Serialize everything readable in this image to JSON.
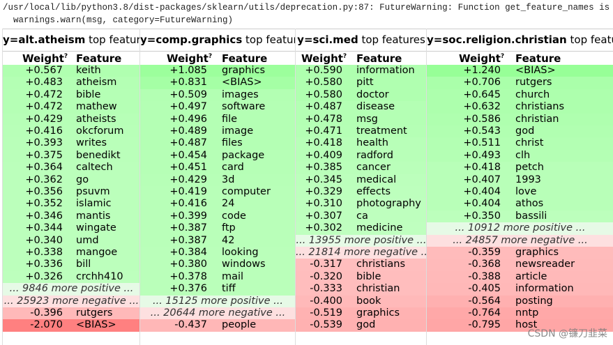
{
  "warning": [
    "/usr/local/lib/python3.8/dist-packages/sklearn/utils/deprecation.py:87: FutureWarning: Function get_feature_names is deprecat",
    "  warnings.warn(msg, category=FutureWarning)"
  ],
  "columns": [
    {
      "target": "y=alt.atheism",
      "caption": "top features",
      "weight_header": "Weight",
      "weight_hint": "?",
      "feature_header": "Feature",
      "positive": {
        "weights": [
          0.567,
          0.483,
          0.472,
          0.472,
          0.429,
          0.416,
          0.393,
          0.375,
          0.364,
          0.362,
          0.356,
          0.352,
          0.346,
          0.344,
          0.34,
          0.338,
          0.336,
          0.326
        ],
        "labels": [
          "+0.567",
          "+0.483",
          "+0.472",
          "+0.472",
          "+0.429",
          "+0.416",
          "+0.393",
          "+0.375",
          "+0.364",
          "+0.362",
          "+0.356",
          "+0.352",
          "+0.346",
          "+0.344",
          "+0.340",
          "+0.338",
          "+0.336",
          "+0.326"
        ],
        "features": [
          "keith",
          "atheism",
          "bible",
          "mathew",
          "atheists",
          "okcforum",
          "writes",
          "benedikt",
          "caltech",
          "go",
          "psuvm",
          "islamic",
          "mantis",
          "wingate",
          "umd",
          "mangoe",
          "bill",
          "crchh410"
        ]
      },
      "more_positive": "... 9846 more positive ...",
      "more_negative": "... 25923 more negative ...",
      "negative": {
        "weights": [
          -0.396,
          -2.07
        ],
        "labels": [
          "-0.396",
          "-2.070"
        ],
        "features": [
          "rutgers",
          "<BIAS>"
        ]
      }
    },
    {
      "target": "y=comp.graphics",
      "caption": "top features",
      "weight_header": "Weight",
      "weight_hint": "?",
      "feature_header": "Feature",
      "positive": {
        "weights": [
          1.085,
          0.831,
          0.509,
          0.497,
          0.496,
          0.489,
          0.487,
          0.454,
          0.451,
          0.429,
          0.419,
          0.416,
          0.399,
          0.387,
          0.387,
          0.384,
          0.38,
          0.378,
          0.376
        ],
        "labels": [
          "+1.085",
          "+0.831",
          "+0.509",
          "+0.497",
          "+0.496",
          "+0.489",
          "+0.487",
          "+0.454",
          "+0.451",
          "+0.429",
          "+0.419",
          "+0.416",
          "+0.399",
          "+0.387",
          "+0.387",
          "+0.384",
          "+0.380",
          "+0.378",
          "+0.376"
        ],
        "features": [
          "graphics",
          "<BIAS>",
          "images",
          "software",
          "file",
          "image",
          "files",
          "package",
          "card",
          "3d",
          "computer",
          "24",
          "code",
          "ftp",
          "42",
          "looking",
          "windows",
          "mail",
          "tiff"
        ]
      },
      "more_positive": "... 15125 more positive ...",
      "more_negative": "... 20644 more negative ...",
      "negative": {
        "weights": [
          -0.437
        ],
        "labels": [
          "-0.437"
        ],
        "features": [
          "people"
        ]
      }
    },
    {
      "target": "y=sci.med",
      "caption": "top features",
      "weight_header": "Weight",
      "weight_hint": "?",
      "feature_header": "Feature",
      "positive": {
        "weights": [
          0.59,
          0.58,
          0.58,
          0.487,
          0.478,
          0.471,
          0.418,
          0.409,
          0.385,
          0.345,
          0.329,
          0.31,
          0.307,
          0.302
        ],
        "labels": [
          "+0.590",
          "+0.580",
          "+0.580",
          "+0.487",
          "+0.478",
          "+0.471",
          "+0.418",
          "+0.409",
          "+0.385",
          "+0.345",
          "+0.329",
          "+0.310",
          "+0.307",
          "+0.302"
        ],
        "features": [
          "information",
          "pitt",
          "doctor",
          "disease",
          "msg",
          "treatment",
          "health",
          "radford",
          "cancer",
          "medical",
          "effects",
          "photography",
          "ca",
          "medicine"
        ]
      },
      "more_positive": "... 13955 more positive ...",
      "more_negative": "... 21814 more negative ...",
      "negative": {
        "weights": [
          -0.317,
          -0.32,
          -0.333,
          -0.4,
          -0.519,
          -0.539
        ],
        "labels": [
          "-0.317",
          "-0.320",
          "-0.333",
          "-0.400",
          "-0.519",
          "-0.539"
        ],
        "features": [
          "christians",
          "bible",
          "christian",
          "book",
          "graphics",
          "god"
        ]
      }
    },
    {
      "target": "y=soc.religion.christian",
      "caption": "top features",
      "weight_header": "Weight",
      "weight_hint": "?",
      "feature_header": "Feature",
      "positive": {
        "weights": [
          1.24,
          0.706,
          0.645,
          0.632,
          0.586,
          0.543,
          0.511,
          0.493,
          0.418,
          0.407,
          0.404,
          0.404,
          0.35
        ],
        "labels": [
          "+1.240",
          "+0.706",
          "+0.645",
          "+0.632",
          "+0.586",
          "+0.543",
          "+0.511",
          "+0.493",
          "+0.418",
          "+0.407",
          "+0.404",
          "+0.404",
          "+0.350"
        ],
        "features": [
          "<BIAS>",
          "rutgers",
          "church",
          "christians",
          "christian",
          "god",
          "christ",
          "clh",
          "petch",
          "1993",
          "love",
          "athos",
          "bassili"
        ]
      },
      "more_positive": "... 10912 more positive ...",
      "more_negative": "... 24857 more negative ...",
      "negative": {
        "weights": [
          -0.359,
          -0.368,
          -0.388,
          -0.405,
          -0.564,
          -0.764,
          -0.795
        ],
        "labels": [
          "-0.359",
          "-0.368",
          "-0.388",
          "-0.405",
          "-0.564",
          "-0.764",
          "-0.795"
        ],
        "features": [
          "graphics",
          "newsreader",
          "article",
          "information",
          "posting",
          "nntp",
          "host"
        ]
      }
    }
  ],
  "watermark": "CSDN @镰刀韭菜"
}
